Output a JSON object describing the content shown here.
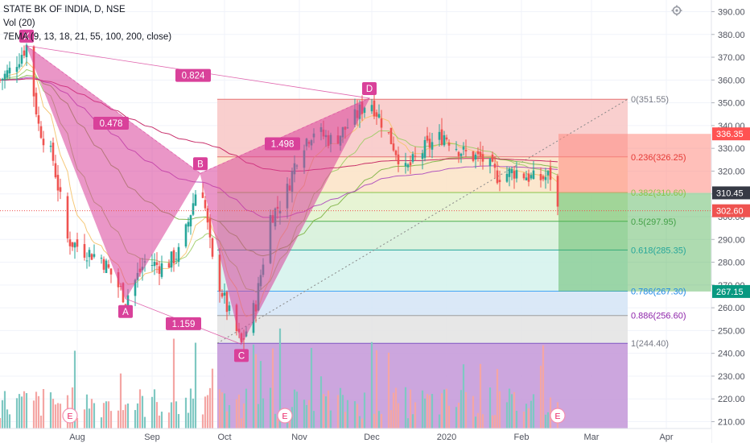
{
  "legend": {
    "title": "STATE BK OF INDIA, D, NSE",
    "vol": "Vol (20)",
    "ema": "7EMA (9, 13, 18, 21, 55, 100, 200, close)"
  },
  "colors": {
    "up": "#26a69a",
    "down": "#ef5350",
    "vol_up": "#7fc8c2",
    "vol_down": "#f4a6a4",
    "pattern": "#d9419a",
    "price_current": "#363a45",
    "price_last": "#ef5350",
    "target_stop": "#ff5252",
    "target_profit": "#089981"
  },
  "price_axis": {
    "ticks": [
      "390.00",
      "380.00",
      "370.00",
      "360.00",
      "350.00",
      "340.00",
      "330.00",
      "320.00",
      "310.00",
      "300.00",
      "290.00",
      "280.00",
      "270.00",
      "260.00",
      "250.00",
      "240.00",
      "230.00",
      "220.00",
      "210.00"
    ],
    "min": 207,
    "max": 393,
    "badges": [
      {
        "label": "336.35",
        "value": 336.35,
        "color": "#ff5252"
      },
      {
        "label": "310.45",
        "value": 310.45,
        "color": "#363a45"
      },
      {
        "label": "302.60",
        "value": 302.6,
        "color": "#ef5350"
      },
      {
        "label": "267.15",
        "value": 267.15,
        "color": "#089981"
      }
    ]
  },
  "time_axis": {
    "labels": [
      "Aug",
      "Sep",
      "Oct",
      "Nov",
      "Dec",
      "2020",
      "Feb",
      "Mar",
      "Apr"
    ],
    "label_days": [
      32,
      63,
      93,
      124,
      154,
      185,
      216,
      245,
      276
    ]
  },
  "harmonic": {
    "points": [
      {
        "label": "X",
        "day": 11,
        "price": 375
      },
      {
        "label": "A",
        "day": 52,
        "price": 264
      },
      {
        "label": "B",
        "day": 83,
        "price": 319
      },
      {
        "label": "C",
        "day": 100,
        "price": 244
      },
      {
        "label": "D",
        "day": 153,
        "price": 352
      }
    ],
    "ratios": [
      {
        "label": "0.824",
        "day": 80,
        "price": 362
      },
      {
        "label": "0.478",
        "day": 46,
        "price": 341
      },
      {
        "label": "1.498",
        "day": 117,
        "price": 332
      },
      {
        "label": "1.159",
        "day": 76,
        "price": 253
      }
    ]
  },
  "fib_levels": [
    {
      "label": "0(351.55)",
      "price": 351.55,
      "color": "#f8c7c5"
    },
    {
      "label": "0.236(326.25)",
      "price": 326.25,
      "color": "#fbe3c6"
    },
    {
      "label": "0.382(310.60)",
      "price": 310.6,
      "color": "#e3f2cc"
    },
    {
      "label": "0.5(297.95)",
      "price": 297.95,
      "color": "#d5f0d8"
    },
    {
      "label": "0.618(285.35)",
      "price": 285.35,
      "color": "#d3f2ec"
    },
    {
      "label": "0.786(267.30)",
      "price": 267.3,
      "color": "#d4e4f6"
    },
    {
      "label": "0.886(256.60)",
      "price": 256.6,
      "color": "#e3e3e3"
    },
    {
      "label": "1(244.40)",
      "price": 244.4,
      "color": "#e4cde8"
    }
  ],
  "events": [
    {
      "label": "E",
      "day": 31
    },
    {
      "label": "E",
      "day": 118
    },
    {
      "label": "E",
      "day": 231
    }
  ],
  "position": {
    "entry": 310.45,
    "stop": 336.35,
    "target": 267.15,
    "day_start": 230,
    "day_end": 312
  }
}
